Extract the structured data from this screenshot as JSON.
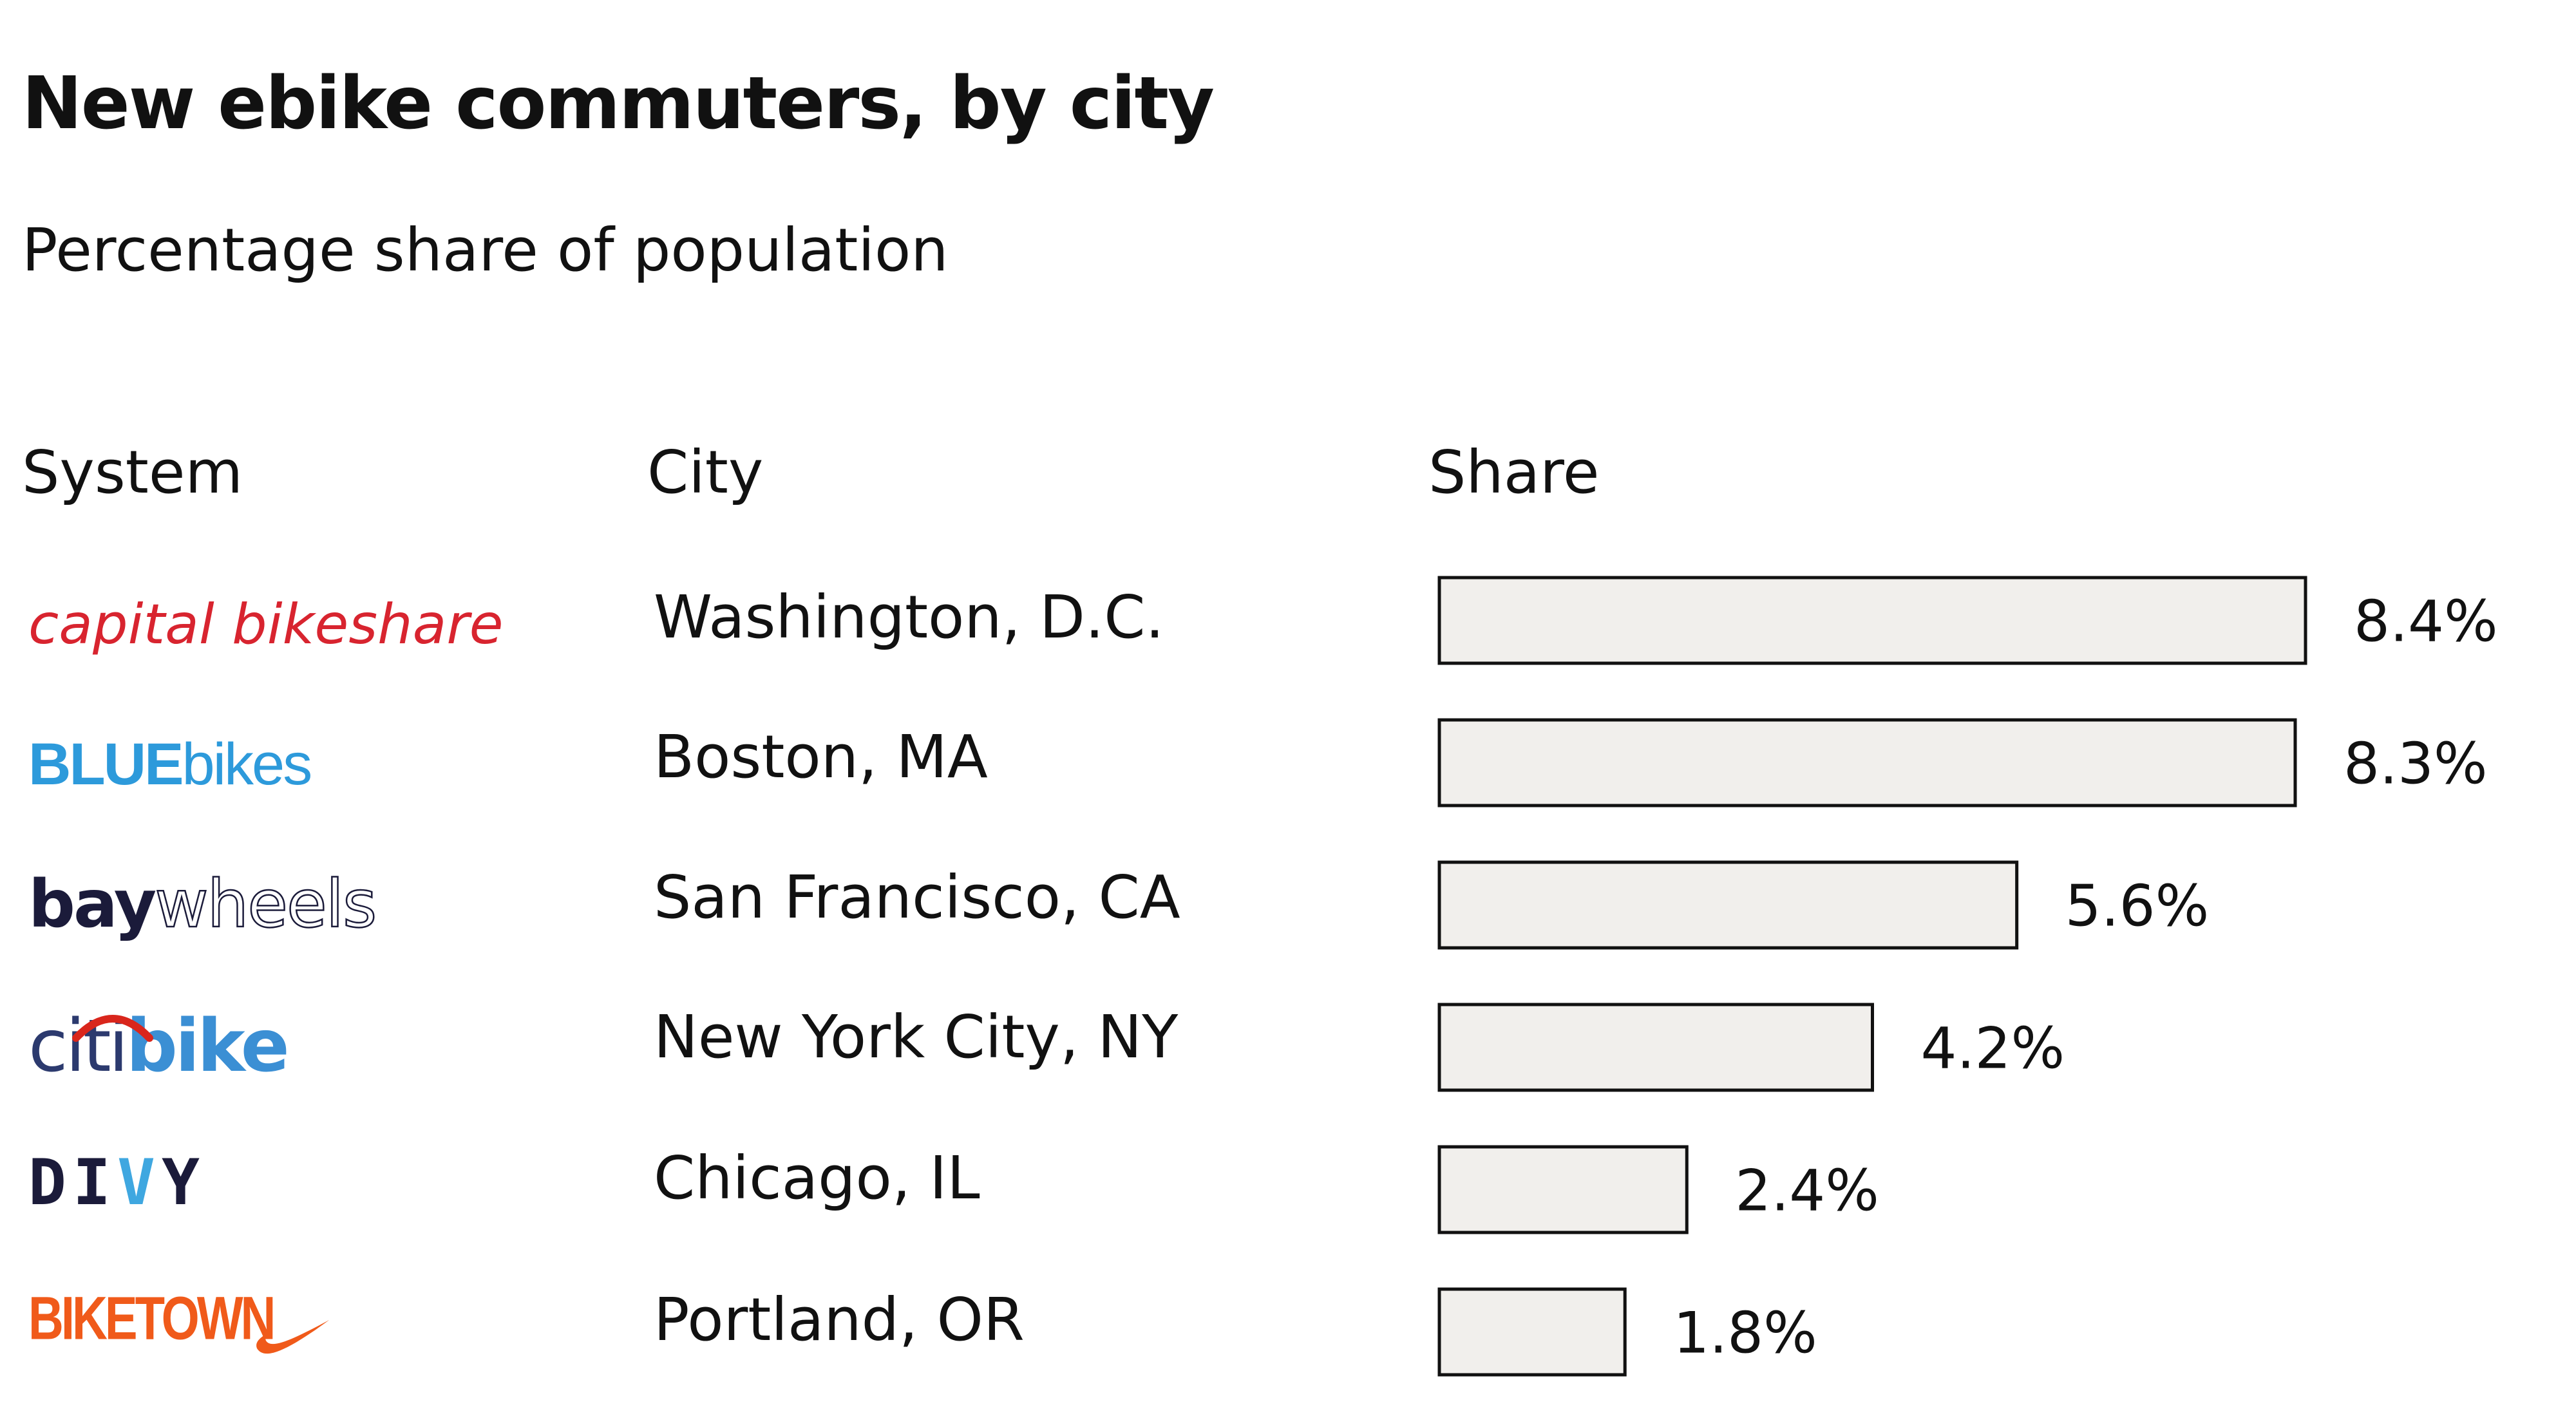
{
  "chart": {
    "title": "New ebike commuters, by city",
    "subtitle": "Percentage share of population"
  },
  "headers": {
    "system": "System",
    "city": "City",
    "share": "Share"
  },
  "logos": {
    "capital": "capital bikeshare",
    "blue_a": "BLUE",
    "blue_b": "bikes",
    "bay_a": "bay",
    "bay_b": "wheels",
    "citi_a": "citi",
    "citi_b": "bike",
    "divvy_a": "DI",
    "divvy_v": "V",
    "divvy_b": "Y",
    "biketown": "BIKETOWN"
  },
  "colors": {
    "bar_fill": "#f1efec",
    "bar_stroke": "#111111",
    "capital_red": "#d8242f",
    "blue_bikes": "#2d9adb",
    "bay_navy": "#1b1b3a",
    "citi_blue": "#3b8fd4",
    "citi_red": "#d9261c",
    "biketown_orange": "#f05a1a"
  },
  "chart_data": {
    "type": "bar",
    "orientation": "horizontal",
    "categories": [
      "Washington, D.C.",
      "Boston, MA",
      "San Francisco, CA",
      "New York City, NY",
      "Chicago, IL",
      "Portland, OR"
    ],
    "systems": [
      "capital bikeshare",
      "BLUEbikes",
      "baywheels",
      "citi bike",
      "DIVVY",
      "BIKETOWN"
    ],
    "values": [
      8.4,
      8.3,
      5.6,
      4.2,
      2.4,
      1.8
    ],
    "value_labels": [
      "8.4%",
      "8.3%",
      "5.6%",
      "4.2%",
      "2.4%",
      "1.8%"
    ],
    "unit": "%",
    "xlim": [
      0,
      8.4
    ],
    "grid": false,
    "legend": "none"
  }
}
